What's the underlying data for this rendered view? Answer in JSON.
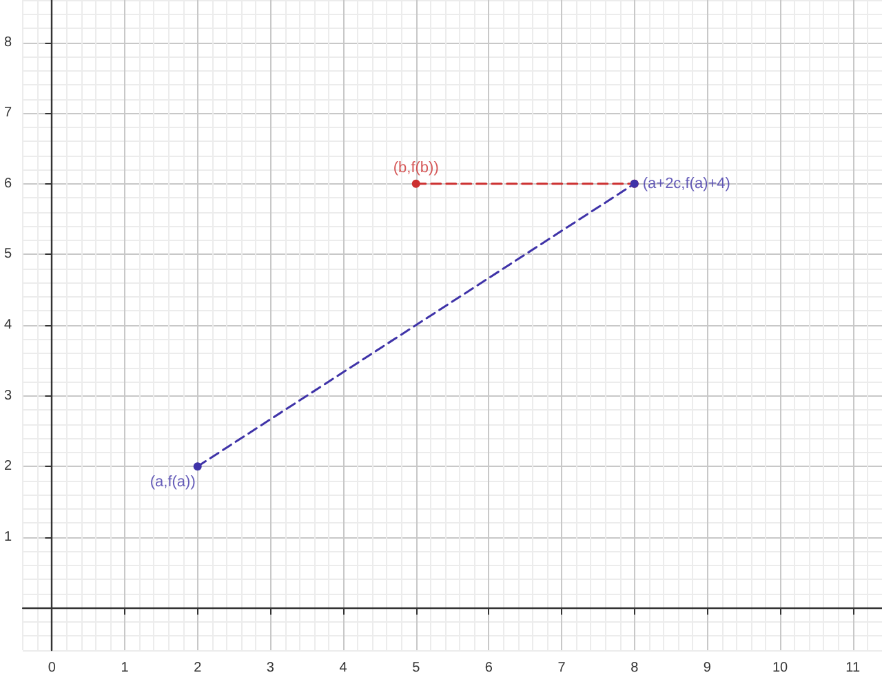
{
  "chart_data": {
    "type": "line",
    "marker": "circle",
    "line_style": "dashed",
    "grid": true,
    "xlim": [
      -0.4,
      11.4
    ],
    "ylim": [
      -0.6,
      8.6
    ],
    "xticks": [
      0,
      1,
      2,
      3,
      4,
      5,
      6,
      7,
      8,
      9,
      10,
      11
    ],
    "yticks": [
      1,
      2,
      3,
      4,
      5,
      6,
      7,
      8
    ],
    "series": [
      {
        "color": "#3f33a8",
        "x": [
          2,
          8
        ],
        "values": [
          2,
          6
        ]
      },
      {
        "color": "#cc2f2f",
        "x": [
          5,
          8
        ],
        "values": [
          6,
          6
        ]
      }
    ],
    "annotations": [
      {
        "text": "(b,f(b))",
        "x": 5,
        "y": 6
      },
      {
        "text": "(a+2c,f(a)+4)",
        "x": 8,
        "y": 6
      },
      {
        "text": "(a,f(a))",
        "x": 2,
        "y": 2
      }
    ]
  }
}
